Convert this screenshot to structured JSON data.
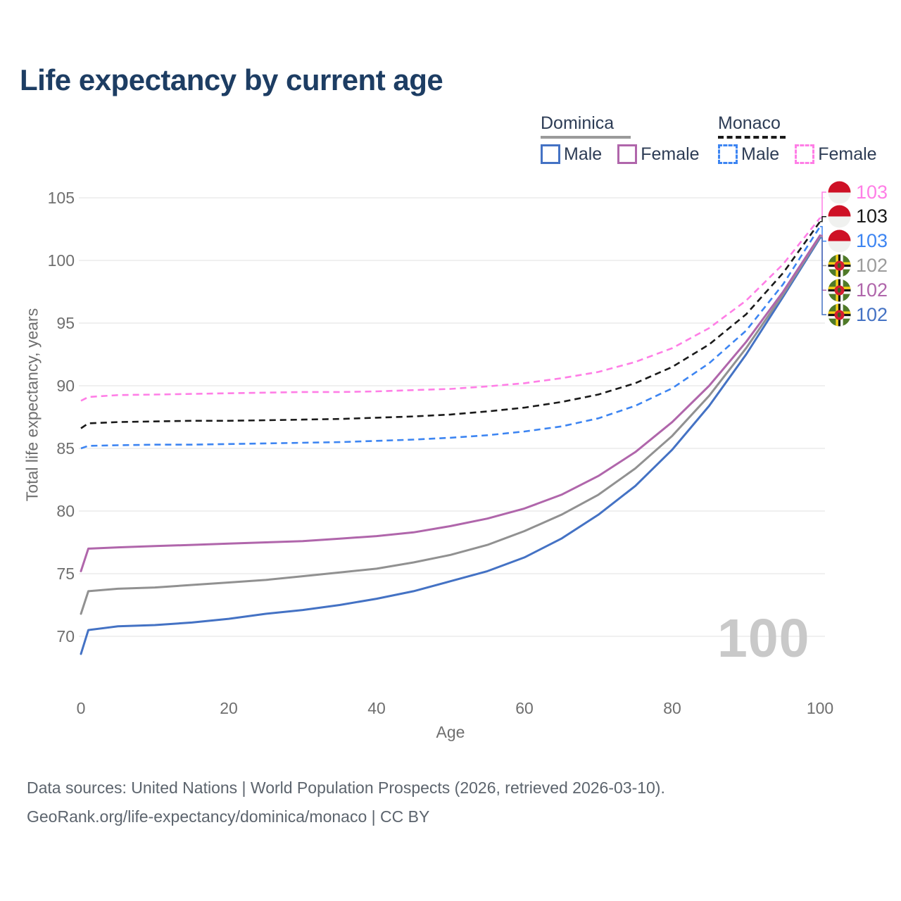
{
  "header": {
    "title": "Life expectancy by current age"
  },
  "legend": {
    "groups": [
      {
        "name": "Dominica",
        "line_style": "solid",
        "line_color": "#9a9a9a",
        "items": [
          {
            "label": "Male",
            "color": "#4472c4",
            "dash": false
          },
          {
            "label": "Female",
            "color": "#b066ab",
            "dash": false
          }
        ]
      },
      {
        "name": "Monaco",
        "line_style": "dashed",
        "line_color": "#1a1a1a",
        "items": [
          {
            "label": "Male",
            "color": "#3d85f2",
            "dash": true
          },
          {
            "label": "Female",
            "color": "#ff7ee6",
            "dash": true
          }
        ]
      }
    ]
  },
  "axes": {
    "x": {
      "title": "Age",
      "ticks": [
        0,
        20,
        40,
        60,
        80,
        100
      ],
      "range": [
        0,
        100
      ]
    },
    "y": {
      "title": "Total life expectancy, years",
      "ticks": [
        70,
        75,
        80,
        85,
        90,
        95,
        100,
        105
      ],
      "range": [
        68,
        105.5
      ]
    }
  },
  "chart_data": {
    "type": "line",
    "title": "Life expectancy by current age",
    "xlabel": "Age",
    "ylabel": "Total life expectancy, years",
    "grid": "horizontal",
    "legend_position": "top-right",
    "x": [
      0,
      1,
      5,
      10,
      15,
      20,
      25,
      30,
      35,
      40,
      45,
      50,
      55,
      60,
      65,
      70,
      75,
      80,
      85,
      90,
      95,
      100
    ],
    "series": [
      {
        "name": "Dominica — Male",
        "country": "Dominica",
        "sex": "Male",
        "style": "solid",
        "color": "#4472c4",
        "values": [
          68.6,
          70.5,
          70.8,
          70.9,
          71.1,
          71.4,
          71.8,
          72.1,
          72.5,
          73.0,
          73.6,
          74.4,
          75.2,
          76.3,
          77.8,
          79.7,
          82.0,
          84.9,
          88.4,
          92.5,
          97.1,
          101.8
        ]
      },
      {
        "name": "Dominica",
        "country": "Dominica",
        "sex": "Both sexes",
        "style": "solid",
        "color": "#919191",
        "values": [
          71.8,
          73.6,
          73.8,
          73.9,
          74.1,
          74.3,
          74.5,
          74.8,
          75.1,
          75.4,
          75.9,
          76.5,
          77.3,
          78.4,
          79.7,
          81.3,
          83.4,
          86.0,
          89.2,
          93.0,
          97.3,
          101.9
        ]
      },
      {
        "name": "Dominica — Female",
        "country": "Dominica",
        "sex": "Female",
        "style": "solid",
        "color": "#b066ab",
        "values": [
          75.2,
          77.0,
          77.1,
          77.2,
          77.3,
          77.4,
          77.5,
          77.6,
          77.8,
          78.0,
          78.3,
          78.8,
          79.4,
          80.2,
          81.3,
          82.8,
          84.7,
          87.1,
          90.0,
          93.5,
          97.5,
          102.0
        ]
      },
      {
        "name": "Monaco — Male",
        "country": "Monaco",
        "sex": "Male",
        "style": "dashed",
        "color": "#3d85f2",
        "values": [
          85.0,
          85.2,
          85.25,
          85.3,
          85.3,
          85.35,
          85.4,
          85.45,
          85.5,
          85.6,
          85.7,
          85.85,
          86.05,
          86.35,
          86.75,
          87.4,
          88.4,
          89.8,
          91.8,
          94.4,
          98.1,
          102.7
        ]
      },
      {
        "name": "Monaco",
        "country": "Monaco",
        "sex": "Both sexes",
        "style": "dashed",
        "color": "#1a1a1a",
        "values": [
          86.6,
          87.0,
          87.1,
          87.15,
          87.2,
          87.2,
          87.25,
          87.3,
          87.35,
          87.45,
          87.55,
          87.7,
          87.95,
          88.25,
          88.7,
          89.3,
          90.2,
          91.5,
          93.3,
          95.7,
          99.0,
          103.1
        ]
      },
      {
        "name": "Monaco — Female",
        "country": "Monaco",
        "sex": "Female",
        "style": "dashed",
        "color": "#ff7ee6",
        "values": [
          88.8,
          89.1,
          89.25,
          89.3,
          89.35,
          89.4,
          89.45,
          89.5,
          89.5,
          89.55,
          89.65,
          89.75,
          89.95,
          90.2,
          90.6,
          91.1,
          91.9,
          93.0,
          94.6,
          96.8,
          99.7,
          103.4
        ]
      }
    ]
  },
  "end_labels": [
    {
      "label": "103",
      "color": "#ff7ee6",
      "flag": "monaco",
      "series_index": 5
    },
    {
      "label": "103",
      "color": "#1a1a1a",
      "flag": "monaco",
      "series_index": 4
    },
    {
      "label": "103",
      "color": "#3d85f2",
      "flag": "monaco",
      "series_index": 3
    },
    {
      "label": "102",
      "color": "#9b9b9b",
      "flag": "dominica",
      "series_index": 1
    },
    {
      "label": "102",
      "color": "#b066ab",
      "flag": "dominica",
      "series_index": 2
    },
    {
      "label": "102",
      "color": "#4472c4",
      "flag": "dominica",
      "series_index": 0
    }
  ],
  "watermark": "100",
  "footer": {
    "line1": "Data sources: United Nations | World Population Prospects (2026, retrieved 2026-03-10).",
    "line2": "GeoRank.org/life-expectancy/dominica/monaco | CC BY"
  }
}
